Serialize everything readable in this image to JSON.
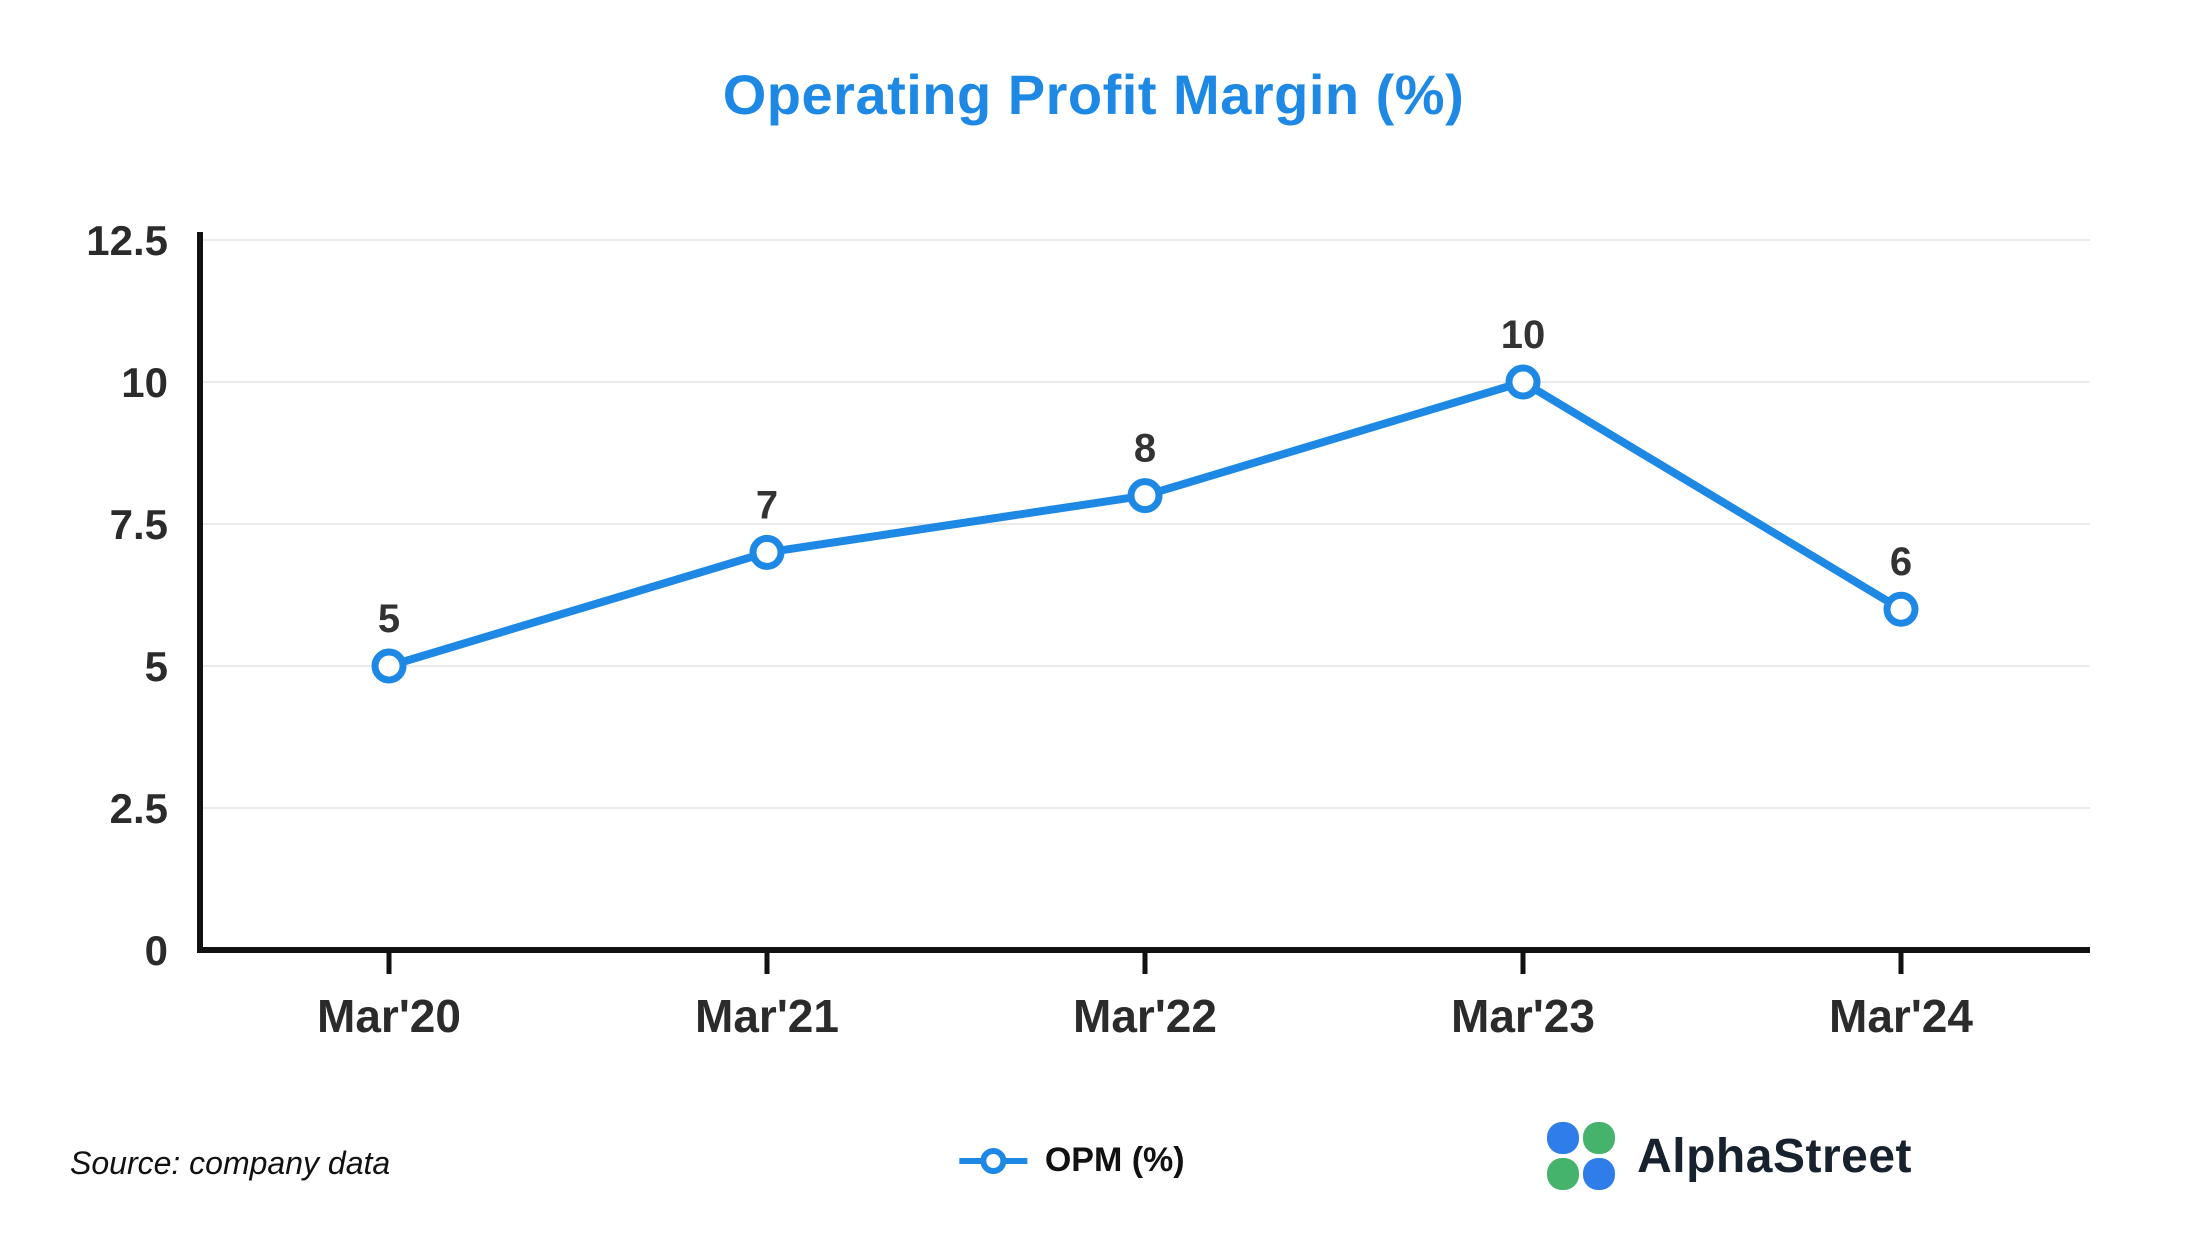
{
  "title": "Operating Profit Margin (%)",
  "source": "Source: company data",
  "legend": {
    "label": "OPM (%)"
  },
  "branding": {
    "name": "AlphaStreet"
  },
  "colors": {
    "accent": "#1e88e5",
    "grid": "#ebebeb",
    "axis": "#111111",
    "label": "#333333",
    "logo_blue": "#2e7de9",
    "logo_green": "#45b36b"
  },
  "chart_data": {
    "type": "line",
    "categories": [
      "Mar'20",
      "Mar'21",
      "Mar'22",
      "Mar'23",
      "Mar'24"
    ],
    "series": [
      {
        "name": "OPM (%)",
        "values": [
          5,
          7,
          8,
          10,
          6
        ]
      }
    ],
    "title": "Operating Profit Margin (%)",
    "xlabel": "",
    "ylabel": "",
    "ylim": [
      0,
      12.5
    ],
    "yticks": [
      0,
      2.5,
      5,
      7.5,
      10,
      12.5
    ],
    "grid": "horizontal",
    "legend_position": "bottom",
    "marker": "circle-open",
    "data_labels": true
  }
}
